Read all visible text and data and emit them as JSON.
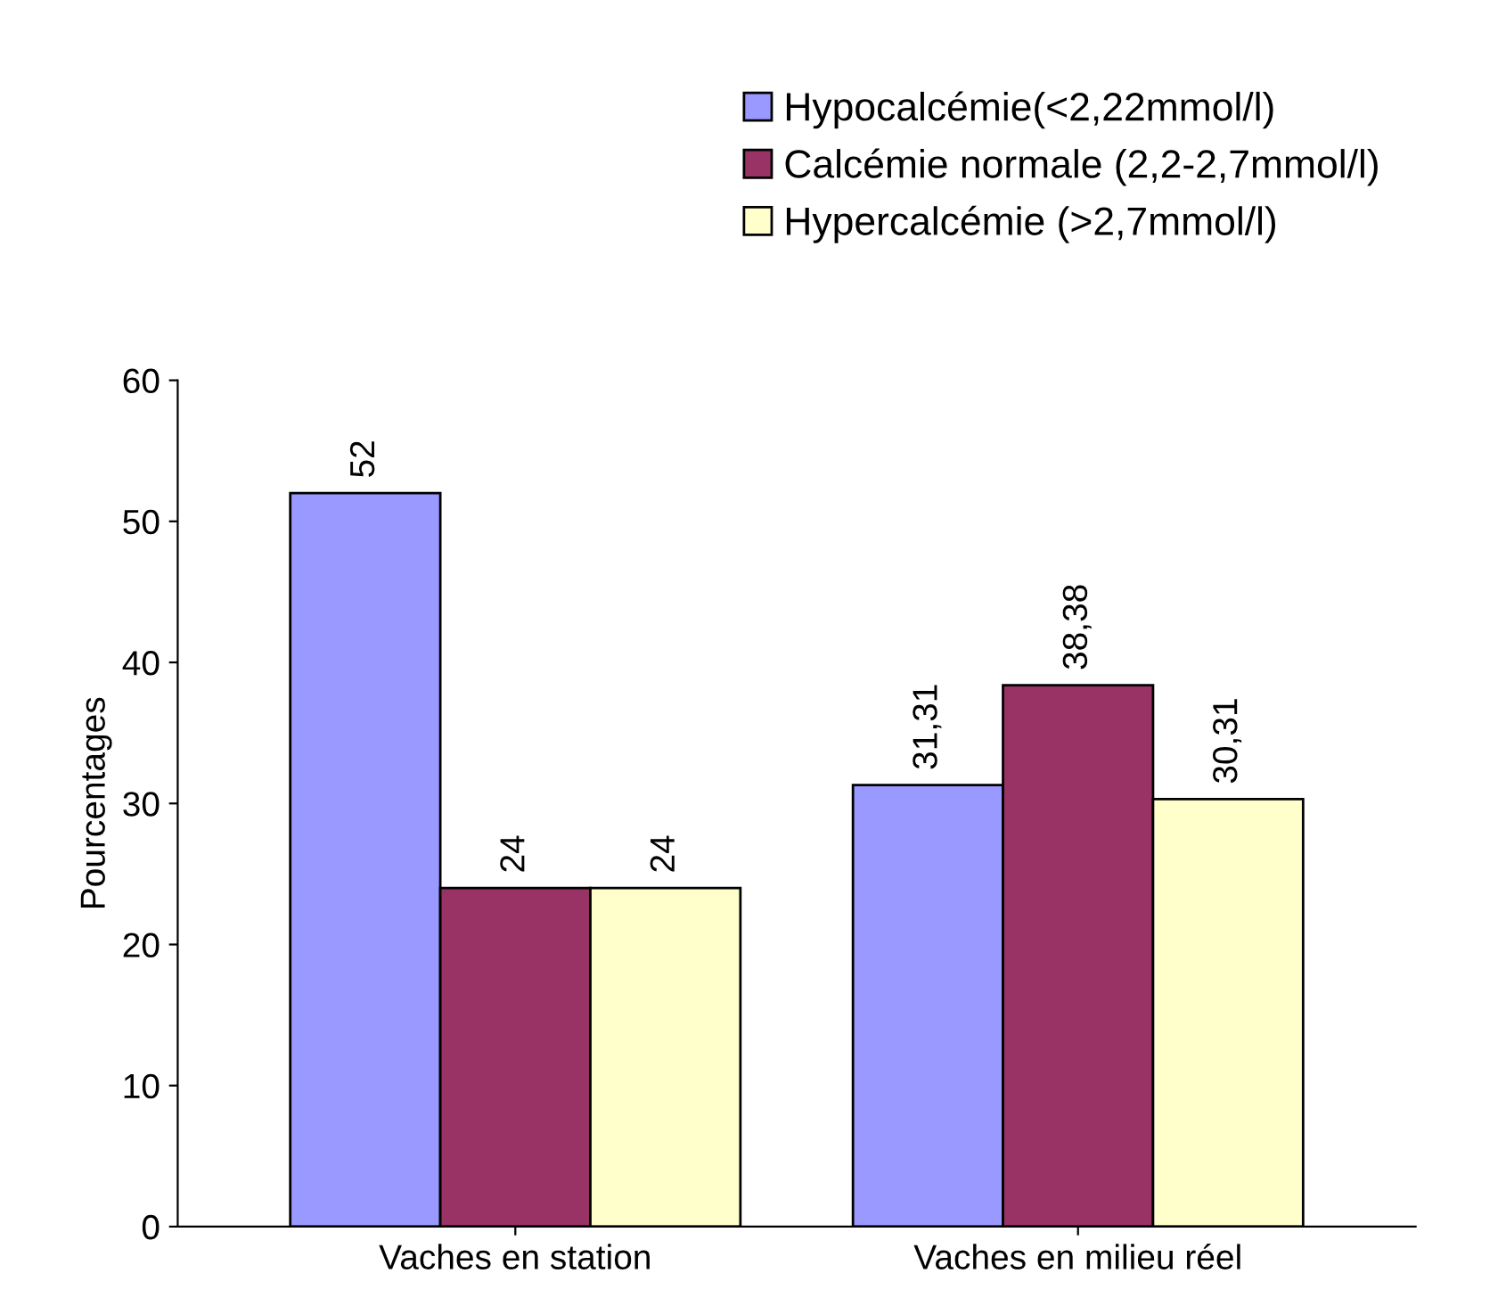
{
  "chart_data": {
    "type": "bar",
    "ylabel": "Pourcentages",
    "categories": [
      "Vaches en station",
      "Vaches en milieu réel"
    ],
    "series": [
      {
        "name": "Hypocalcémie(<2,22mmol/l)",
        "color": "#9999ff",
        "values": [
          52,
          31.31
        ],
        "value_labels": [
          "52",
          "31,31"
        ]
      },
      {
        "name": "Calcémie normale (2,2-2,7mmol/l)",
        "color": "#993366",
        "values": [
          24,
          38.38
        ],
        "value_labels": [
          "24",
          "38,38"
        ]
      },
      {
        "name": "Hypercalcémie (>2,7mmol/l)",
        "color": "#ffffcc",
        "values": [
          24,
          30.31
        ],
        "value_labels": [
          "24",
          "30,31"
        ]
      }
    ],
    "ylim": [
      0,
      60
    ],
    "yticks": [
      0,
      10,
      20,
      30,
      40,
      50,
      60
    ],
    "grid": false,
    "legend": "top right"
  }
}
